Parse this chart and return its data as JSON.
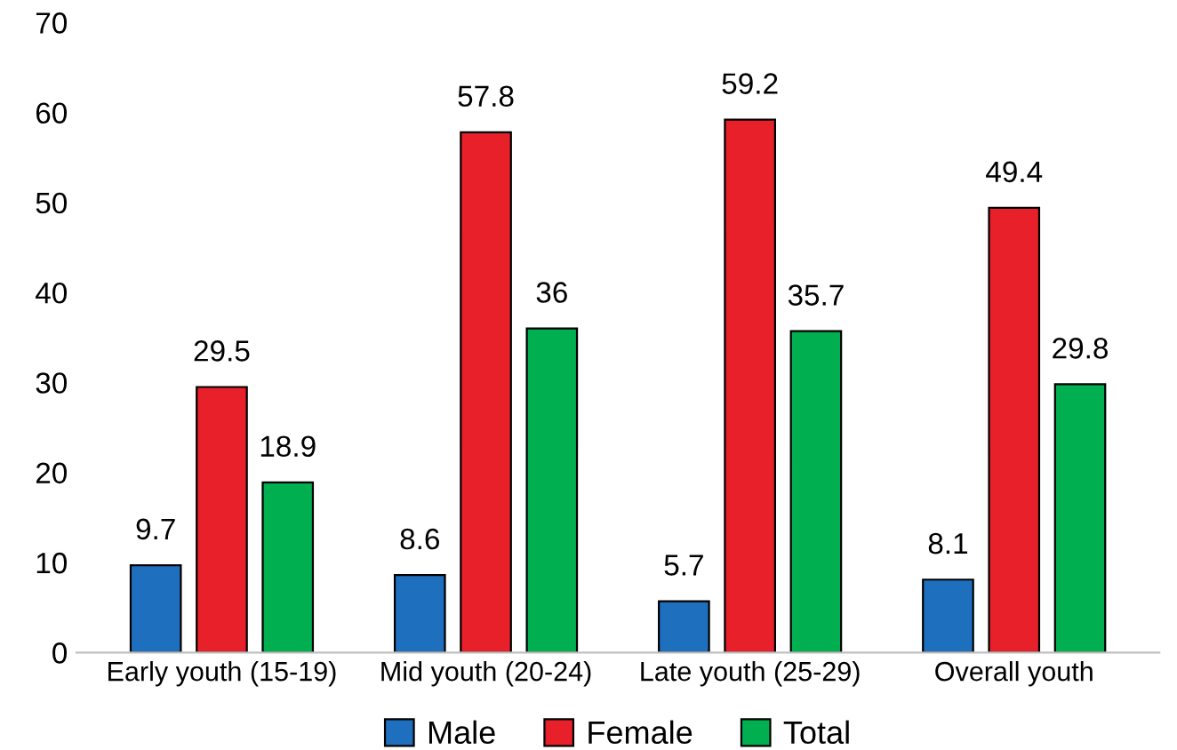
{
  "chart_data": {
    "type": "bar",
    "categories": [
      "Early youth (15-19)",
      "Mid youth (20-24)",
      "Late youth (25-29)",
      "Overall youth"
    ],
    "series": [
      {
        "name": "Male",
        "color": "#1f6fbf",
        "values": [
          9.7,
          8.6,
          5.7,
          8.1
        ]
      },
      {
        "name": "Female",
        "color": "#e8202a",
        "values": [
          29.5,
          57.8,
          59.2,
          49.4
        ]
      },
      {
        "name": "Total",
        "color": "#00b050",
        "values": [
          18.9,
          36,
          35.7,
          29.8
        ]
      }
    ],
    "ylim": [
      0,
      70
    ],
    "yticks": [
      0,
      10,
      20,
      30,
      40,
      50,
      60,
      70
    ],
    "data_labels": true,
    "grid": false,
    "legend": "bottom"
  }
}
